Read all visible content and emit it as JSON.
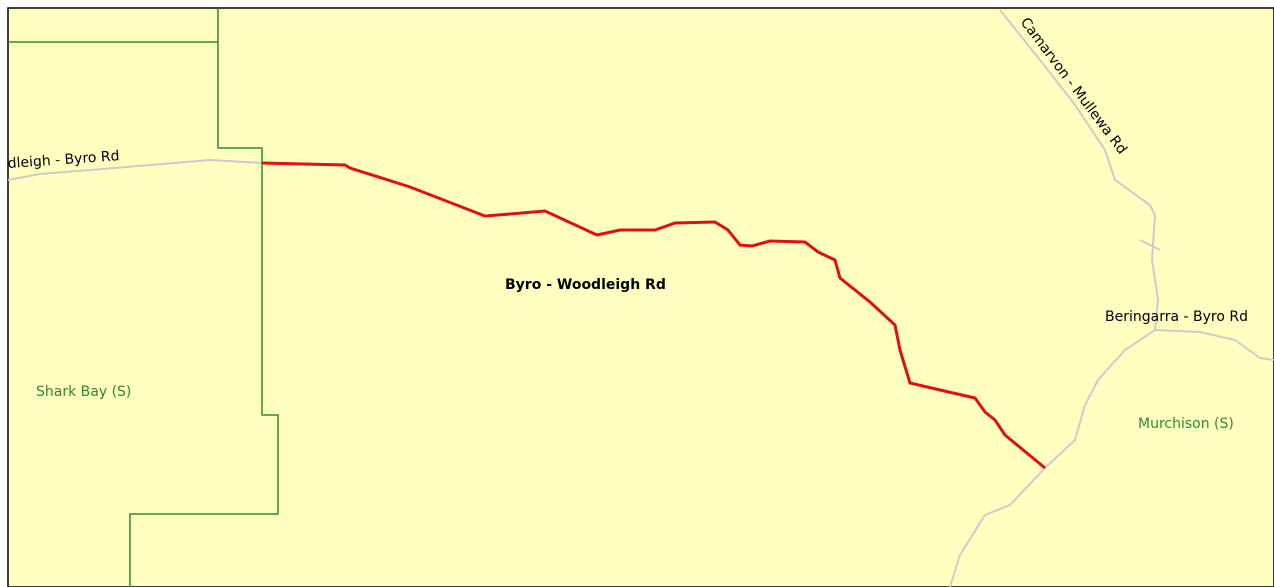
{
  "roads": {
    "west": "dleigh - Byro Rd",
    "north": "Camarvon - Mullewa Rd",
    "highlighted": "Byro - Woodleigh Rd",
    "east": "Beringarra - Byro Rd"
  },
  "regions": {
    "west": "Shark Bay (S)",
    "east": "Murchison (S)"
  }
}
